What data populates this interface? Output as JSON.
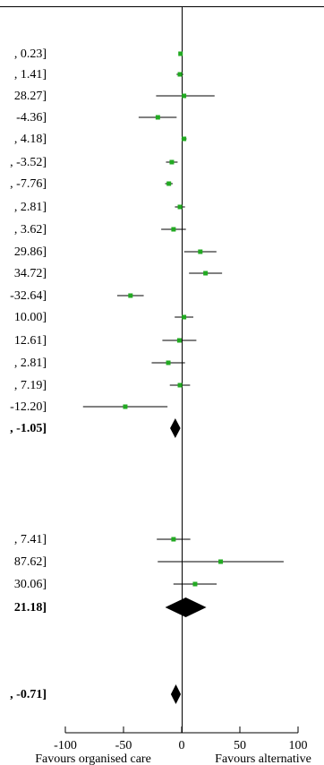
{
  "chart_data": {
    "type": "forest",
    "axis": {
      "xlim": [
        -100,
        100
      ],
      "ticks": [
        -100,
        -50,
        0,
        50,
        100
      ],
      "tick_labels": [
        "-100",
        "-50",
        "0",
        "50",
        "100"
      ],
      "left_label": "Favours organised care",
      "right_label": "Favours alternative"
    },
    "rows": [
      {
        "ci_text": ", 0.23]",
        "estimate": -1.0,
        "lower": -2.2,
        "upper": 0.23,
        "kind": "study",
        "bold": false
      },
      {
        "ci_text": ", 1.41]",
        "estimate": -1.5,
        "lower": -4.4,
        "upper": 1.41,
        "kind": "study",
        "bold": false
      },
      {
        "ci_text": "28.27]",
        "estimate": 2.0,
        "lower": -22.0,
        "upper": 28.27,
        "kind": "study",
        "bold": false
      },
      {
        "ci_text": "-4.36]",
        "estimate": -20.5,
        "lower": -37.0,
        "upper": -4.36,
        "kind": "study",
        "bold": false
      },
      {
        "ci_text": ", 4.18]",
        "estimate": 2.0,
        "lower": -0.2,
        "upper": 4.18,
        "kind": "study",
        "bold": false
      },
      {
        "ci_text": ", -3.52]",
        "estimate": -8.5,
        "lower": -13.5,
        "upper": -3.52,
        "kind": "study",
        "bold": false
      },
      {
        "ci_text": ", -7.76]",
        "estimate": -11.0,
        "lower": -14.2,
        "upper": -7.76,
        "kind": "study",
        "bold": false
      },
      {
        "ci_text": ", 2.81]",
        "estimate": -1.5,
        "lower": -5.8,
        "upper": 2.81,
        "kind": "study",
        "bold": false
      },
      {
        "ci_text": ", 3.62]",
        "estimate": -7.0,
        "lower": -17.6,
        "upper": 3.62,
        "kind": "study",
        "bold": false
      },
      {
        "ci_text": "29.86]",
        "estimate": 16.0,
        "lower": 2.1,
        "upper": 29.86,
        "kind": "study",
        "bold": false
      },
      {
        "ci_text": "34.72]",
        "estimate": 20.5,
        "lower": 6.3,
        "upper": 34.72,
        "kind": "study",
        "bold": false
      },
      {
        "ci_text": "-32.64]",
        "estimate": -44.0,
        "lower": -55.4,
        "upper": -32.64,
        "kind": "study",
        "bold": false
      },
      {
        "ci_text": "10.00]",
        "estimate": 2.0,
        "lower": -6.0,
        "upper": 10.0,
        "kind": "study",
        "bold": false
      },
      {
        "ci_text": "12.61]",
        "estimate": -2.0,
        "lower": -16.6,
        "upper": 12.61,
        "kind": "study",
        "bold": false
      },
      {
        "ci_text": ", 2.81]",
        "estimate": -11.5,
        "lower": -25.8,
        "upper": 2.81,
        "kind": "study",
        "bold": false
      },
      {
        "ci_text": ", 7.19]",
        "estimate": -1.5,
        "lower": -10.2,
        "upper": 7.19,
        "kind": "study",
        "bold": false
      },
      {
        "ci_text": "-12.20]",
        "estimate": -48.5,
        "lower": -84.8,
        "upper": -12.2,
        "kind": "study",
        "bold": false
      },
      {
        "ci_text": ", -1.05]",
        "estimate": -5.5,
        "lower": -9.95,
        "upper": -1.05,
        "kind": "summary",
        "bold": true
      },
      {
        "ci_text": ", 7.41]",
        "estimate": -7.0,
        "lower": -21.4,
        "upper": 7.41,
        "kind": "study",
        "bold": false
      },
      {
        "ci_text": "87.62]",
        "estimate": 33.5,
        "lower": -20.6,
        "upper": 87.62,
        "kind": "study",
        "bold": false
      },
      {
        "ci_text": "30.06]",
        "estimate": 11.5,
        "lower": -7.1,
        "upper": 30.06,
        "kind": "study",
        "bold": false
      },
      {
        "ci_text": "21.18]",
        "estimate": 3.5,
        "lower": -14.2,
        "upper": 21.18,
        "kind": "summary",
        "bold": true
      },
      {
        "ci_text": ", -0.71]",
        "estimate": -5.0,
        "lower": -9.3,
        "upper": -0.71,
        "kind": "summary",
        "bold": true
      }
    ],
    "colors": {
      "marker": "#22aa22",
      "line": "#000000",
      "diamond": "#000000"
    }
  }
}
